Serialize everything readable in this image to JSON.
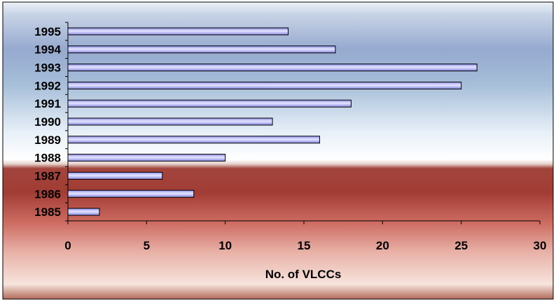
{
  "chart_data": {
    "type": "bar",
    "orientation": "horizontal",
    "categories": [
      "1995",
      "1994",
      "1993",
      "1992",
      "1991",
      "1990",
      "1989",
      "1988",
      "1987",
      "1986",
      "1985"
    ],
    "values": [
      14,
      17,
      26,
      25,
      18,
      13,
      16,
      10,
      6,
      8,
      2
    ],
    "title": "",
    "xlabel": "No. of VLCCs",
    "ylabel": "",
    "xlim": [
      0,
      30
    ],
    "xticks": [
      "0",
      "5",
      "10",
      "15",
      "20",
      "25",
      "30"
    ],
    "grid": false,
    "legend": "none",
    "colors": {
      "bar_fill": "#9a9af0",
      "bar_highlight": "#e4e4ff",
      "bar_stroke": "#000000",
      "bg_top": "#9db0d0",
      "bg_light": "#ffffff",
      "bg_bottom": "#c25048"
    }
  }
}
